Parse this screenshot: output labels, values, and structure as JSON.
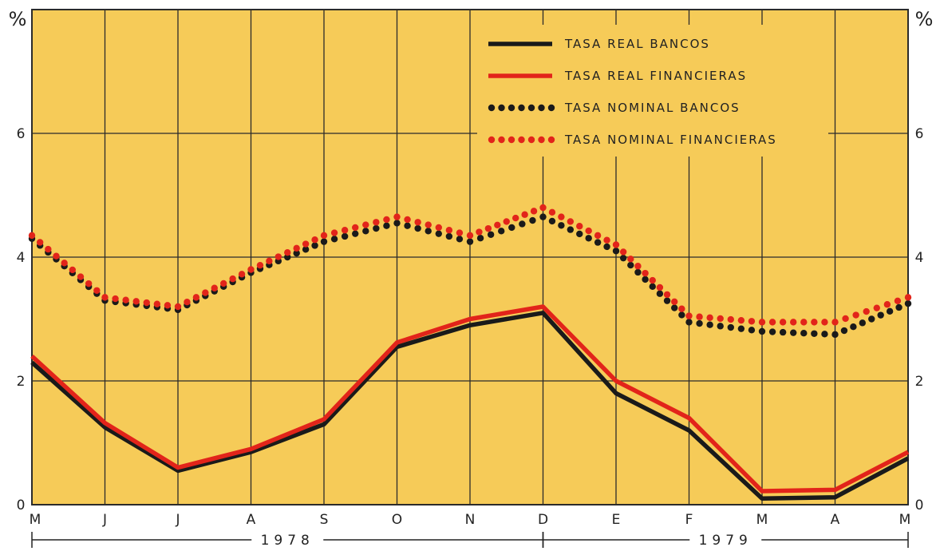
{
  "chart_data": {
    "type": "line",
    "y_unit_left": "%",
    "y_unit_right": "%",
    "ylim": [
      0,
      8
    ],
    "yticks": [
      0,
      2,
      4,
      6
    ],
    "x_labels": [
      "M",
      "J",
      "J",
      "A",
      "S",
      "O",
      "N",
      "D",
      "E",
      "F",
      "M",
      "A",
      "M"
    ],
    "years": [
      {
        "label": "1978",
        "from_index": 0,
        "to_index": 7
      },
      {
        "label": "1979",
        "from_index": 7,
        "to_index": 12
      }
    ],
    "grid": true,
    "legend_position": "top-right",
    "colors": {
      "background": "#f6cb58",
      "black": "#1a1a1a",
      "red": "#e2241a",
      "grid": "#2b2b2b"
    },
    "series": [
      {
        "name": "TASA REAL BANCOS",
        "style": "solid",
        "color": "#1a1a1a",
        "values": [
          2.3,
          1.25,
          0.55,
          0.85,
          1.3,
          2.55,
          2.9,
          3.1,
          1.8,
          1.2,
          0.1,
          0.12,
          0.75
        ]
      },
      {
        "name": "TASA REAL FINANCIERAS",
        "style": "solid",
        "color": "#e2241a",
        "values": [
          2.4,
          1.32,
          0.6,
          0.9,
          1.38,
          2.62,
          3.0,
          3.2,
          2.0,
          1.4,
          0.22,
          0.24,
          0.85
        ]
      },
      {
        "name": "TASA NOMINAL BANCOS",
        "style": "dotted",
        "color": "#1a1a1a",
        "values": [
          4.3,
          3.3,
          3.15,
          3.75,
          4.25,
          4.55,
          4.25,
          4.65,
          4.1,
          2.95,
          2.8,
          2.75,
          3.25
        ]
      },
      {
        "name": "TASA NOMINAL FINANCIERAS",
        "style": "dotted",
        "color": "#e2241a",
        "values": [
          4.35,
          3.35,
          3.2,
          3.8,
          4.35,
          4.65,
          4.35,
          4.8,
          4.2,
          3.05,
          2.95,
          2.95,
          3.35
        ]
      }
    ]
  }
}
